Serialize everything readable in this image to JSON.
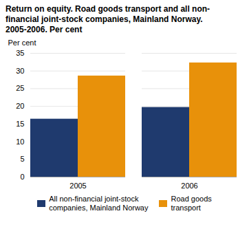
{
  "chart_data": {
    "type": "bar",
    "title": "Return on equity. Road goods transport and all non-\nfinancial joint-stock companies, Mainland Norway.\n2005-2006. Per cent",
    "ylabel": "Per cent",
    "categories": [
      "2005",
      "2006"
    ],
    "series": [
      {
        "name": "All non-financial joint-stock\ncompanies, Mainland Norway",
        "color": "#1F3A6E",
        "values": [
          16.4,
          19.7
        ]
      },
      {
        "name": "Road goods\ntransport",
        "color": "#E8910A",
        "values": [
          28.6,
          32.3
        ]
      }
    ],
    "ylim": [
      0,
      35
    ],
    "yticks": [
      0,
      5,
      10,
      15,
      20,
      25,
      30,
      35
    ],
    "grid": true,
    "legend": "bottom"
  }
}
